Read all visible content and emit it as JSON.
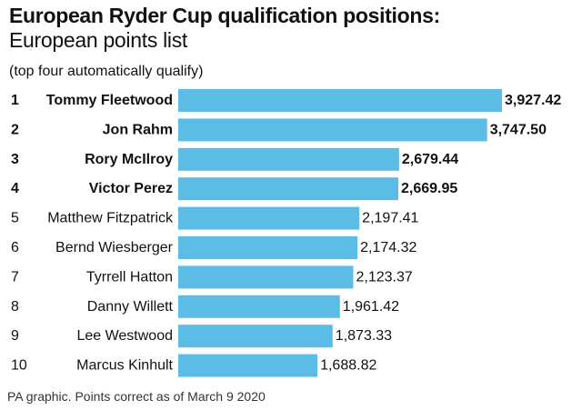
{
  "header": {
    "title": "European Ryder Cup qualification positions:",
    "subtitle": "European points list",
    "note": "(top four automatically qualify)"
  },
  "footer": {
    "source": "PA graphic. Points correct as of March 9 2020"
  },
  "colors": {
    "bar": "#5bbde6",
    "text": "#111111"
  },
  "chart_data": {
    "type": "bar",
    "orientation": "horizontal",
    "ranks": [
      "1",
      "2",
      "3",
      "4",
      "5",
      "6",
      "7",
      "8",
      "9",
      "10"
    ],
    "categories": [
      "Tommy Fleetwood",
      "Jon Rahm",
      "Rory McIlroy",
      "Victor Perez",
      "Matthew Fitzpatrick",
      "Bernd Wiesberger",
      "Tyrrell Hatton",
      "Danny Willett",
      "Lee Westwood",
      "Marcus Kinhult"
    ],
    "values": [
      3927.42,
      3747.5,
      2679.44,
      2669.95,
      2197.41,
      2174.32,
      2123.37,
      1961.42,
      1873.33,
      1688.82
    ],
    "value_labels": [
      "3,927.42",
      "3,747.50",
      "2,679.44",
      "2,669.95",
      "2,197.41",
      "2,174.32",
      "2,123.37",
      "1,961.42",
      "1,873.33",
      "1,688.82"
    ],
    "highlight_top": 4,
    "grid": false,
    "legend": "none"
  }
}
